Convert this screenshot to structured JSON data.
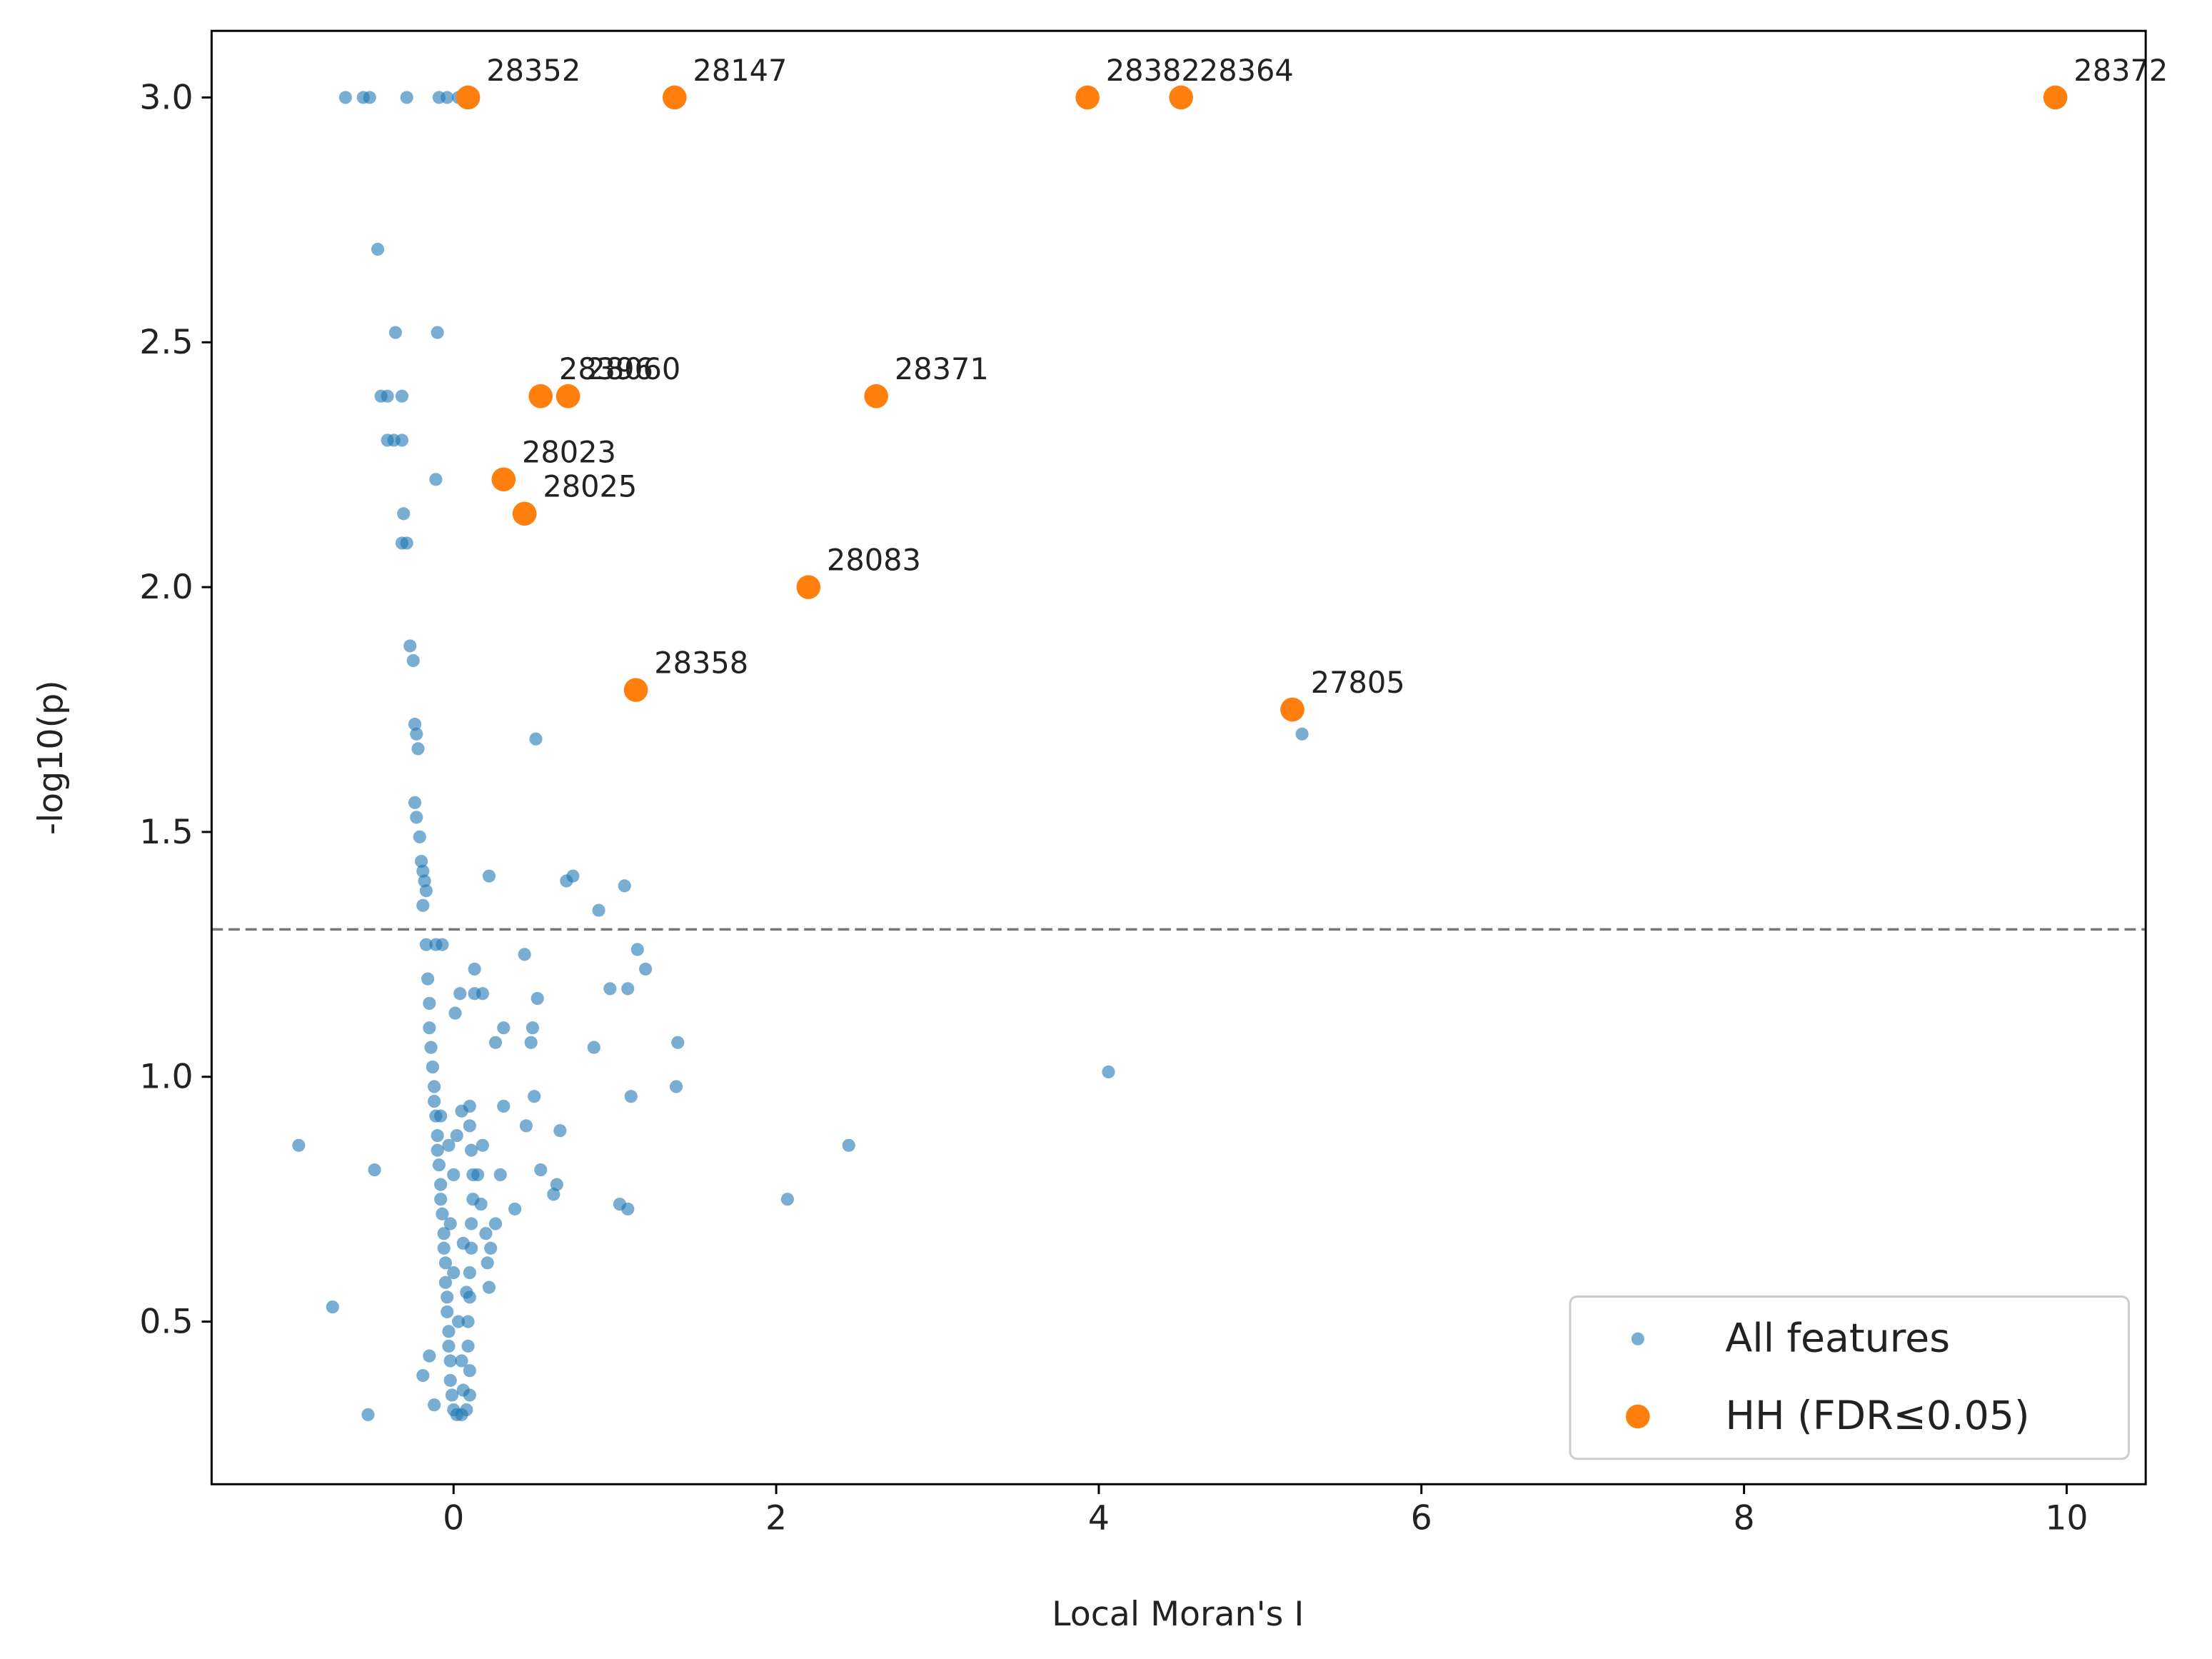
{
  "chart_data": {
    "type": "scatter",
    "xlabel": "Local Moran's I",
    "ylabel": "-log10(p)",
    "xlim": [
      -1.5,
      10.49
    ],
    "ylim": [
      0.168,
      3.136
    ],
    "xticks": [
      0,
      2,
      4,
      6,
      8,
      10
    ],
    "yticks": [
      0.5,
      {
        "value": 1,
        "label": "1.0"
      },
      1.5,
      {
        "value": 2,
        "label": "2.0"
      },
      2.5,
      {
        "value": 3,
        "label": "3.0"
      }
    ],
    "hline": 1.301,
    "legend": "lower right",
    "series": [
      {
        "name": "All features",
        "color": "#1f77b4",
        "x": [
          -0.67,
          -0.56,
          -0.52,
          -0.29,
          -0.09,
          -0.04,
          0.03,
          0.07,
          -0.47,
          -0.36,
          -0.1,
          -0.45,
          -0.41,
          -0.32,
          -0.41,
          -0.37,
          -0.32,
          -0.11,
          -0.31,
          -0.32,
          -0.29,
          -0.27,
          -0.25,
          -0.24,
          -0.23,
          -0.22,
          0.51,
          5.26,
          -0.24,
          -0.23,
          -0.21,
          -0.2,
          -0.19,
          -0.18,
          -0.17,
          -0.19,
          0.22,
          0.74,
          0.7,
          1.06,
          0.9,
          -0.17,
          -0.11,
          -0.07,
          0.44,
          1.14,
          1.19,
          0.13,
          0.97,
          1.08,
          0.52,
          0.04,
          0.13,
          0.18,
          0.01,
          0.49,
          0.31,
          0.26,
          0.48,
          1.39,
          0.87,
          4.06,
          1.38,
          0.5,
          1.1,
          0.31,
          0.45,
          0.66,
          -0.96,
          2.45,
          -0.49,
          0.54,
          0.29,
          0.64,
          0.62,
          2.07,
          1.03,
          1.08,
          0.38,
          0.26,
          0.23,
          0.21,
          0.22,
          -0.75,
          -0.19,
          -0.53,
          -0.16,
          -0.15,
          -0.15,
          -0.14,
          -0.13,
          -0.12,
          -0.12,
          -0.11,
          -0.1,
          -0.1,
          -0.09,
          -0.08,
          -0.08,
          -0.07,
          -0.06,
          -0.06,
          -0.05,
          -0.05,
          -0.04,
          -0.04,
          -0.03,
          -0.03,
          -0.02,
          -0.02,
          -0.01,
          0,
          0.02,
          0.05,
          0.08,
          0.1,
          0.1,
          0.09,
          0.09,
          0.1,
          0.1,
          0.11,
          0.11,
          0.12,
          0.12,
          0.11,
          0.1,
          0.1,
          0.05,
          0.02,
          0,
          -0.02,
          0,
          0.03,
          0.05,
          0.06,
          -0.15,
          -0.12,
          0.15,
          0.18,
          0.2,
          0.17,
          -0.08,
          -0.03,
          0.06,
          0.08
        ],
        "values": [
          3,
          3,
          3,
          3,
          3,
          3,
          3,
          3,
          2.69,
          2.52,
          2.52,
          2.39,
          2.39,
          2.39,
          2.3,
          2.3,
          2.3,
          2.22,
          2.15,
          2.09,
          2.09,
          1.88,
          1.85,
          1.72,
          1.7,
          1.67,
          1.69,
          1.7,
          1.56,
          1.53,
          1.49,
          1.44,
          1.42,
          1.4,
          1.38,
          1.35,
          1.41,
          1.41,
          1.4,
          1.39,
          1.34,
          1.27,
          1.27,
          1.27,
          1.25,
          1.26,
          1.22,
          1.22,
          1.18,
          1.18,
          1.16,
          1.17,
          1.17,
          1.17,
          1.13,
          1.1,
          1.1,
          1.07,
          1.07,
          1.07,
          1.06,
          1.01,
          0.98,
          0.96,
          0.96,
          0.94,
          0.9,
          0.89,
          0.86,
          0.86,
          0.81,
          0.81,
          0.8,
          0.78,
          0.76,
          0.75,
          0.74,
          0.73,
          0.73,
          0.7,
          0.65,
          0.62,
          0.57,
          0.53,
          0.39,
          0.31,
          1.2,
          1.15,
          1.1,
          1.06,
          1.02,
          0.98,
          0.95,
          0.92,
          0.88,
          0.85,
          0.82,
          0.78,
          0.75,
          0.72,
          0.68,
          0.65,
          0.62,
          0.58,
          0.55,
          0.52,
          0.48,
          0.45,
          0.42,
          0.38,
          0.35,
          0.32,
          0.31,
          0.31,
          0.32,
          0.35,
          0.4,
          0.45,
          0.5,
          0.55,
          0.6,
          0.65,
          0.7,
          0.75,
          0.8,
          0.85,
          0.9,
          0.94,
          0.93,
          0.88,
          0.8,
          0.7,
          0.6,
          0.5,
          0.42,
          0.36,
          0.43,
          0.33,
          0.8,
          0.86,
          0.68,
          0.74,
          0.92,
          0.86,
          0.66,
          0.56
        ]
      },
      {
        "name": "HH (FDR≤0.05)",
        "color": "#ff7f0e",
        "x": [
          0.09,
          1.37,
          3.93,
          4.51,
          9.93,
          0.54,
          0.71,
          2.62,
          0.31,
          0.44,
          2.2,
          1.13,
          5.2
        ],
        "values": [
          3,
          3,
          3,
          3,
          3,
          2.39,
          2.39,
          2.39,
          2.22,
          2.15,
          2.0,
          1.79,
          1.75
        ],
        "point_labels": [
          "28352",
          "28147",
          "28382",
          "28364",
          "28372",
          "28396",
          "28060",
          "28371",
          "28023",
          "28025",
          "28083",
          "28358",
          "27805"
        ]
      }
    ]
  }
}
